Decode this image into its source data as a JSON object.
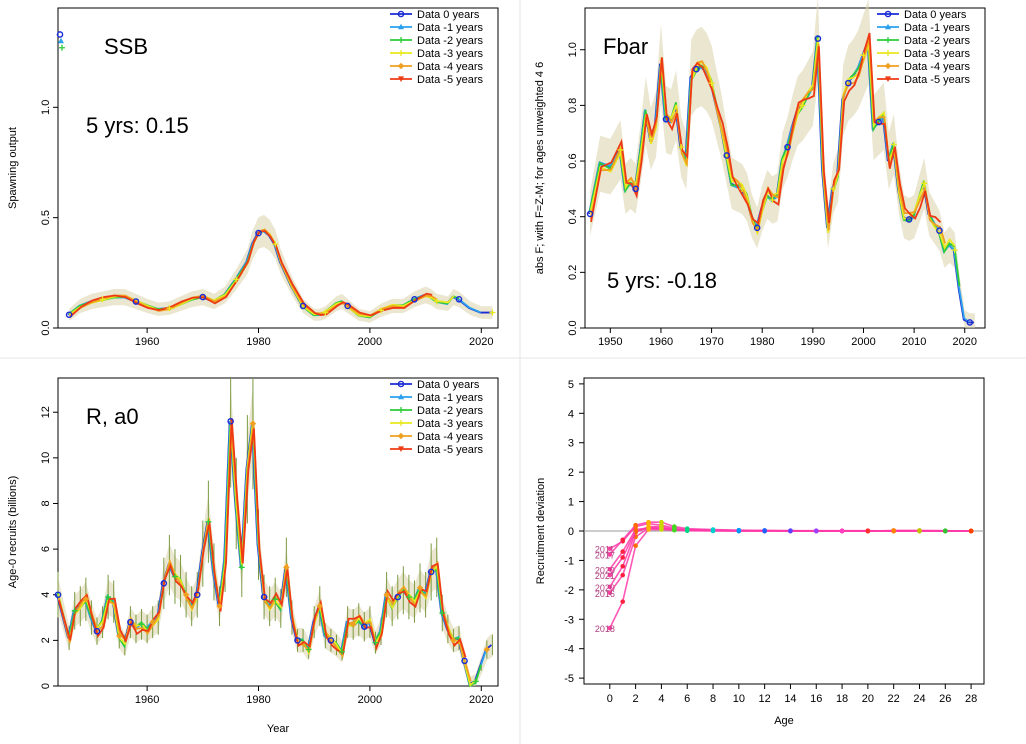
{
  "legend_labels": [
    "Data 0 years",
    "Data -1 years",
    "Data -2 years",
    "Data -3 years",
    "Data -4 years",
    "Data -5 years"
  ],
  "legend_colors": [
    "#1a2bd6",
    "#2aa0ee",
    "#2ecc3a",
    "#e8e820",
    "#f0a020",
    "#ee3a14"
  ],
  "chart_data": [
    {
      "type": "line",
      "title": "SSB",
      "annotation": "5 yrs: 0.15",
      "xlabel": "",
      "ylabel": "Spawning output",
      "xlim": [
        1944,
        2023
      ],
      "ylim": [
        0,
        1.45
      ],
      "xticks": [
        1960,
        1980,
        2000,
        2020
      ],
      "yticks": [
        "0.0",
        "0.5",
        "1.0"
      ],
      "ytick_values": [
        0,
        0.5,
        1.0
      ],
      "x": [
        1946,
        1948,
        1950,
        1952,
        1954,
        1956,
        1958,
        1960,
        1962,
        1964,
        1966,
        1968,
        1970,
        1972,
        1974,
        1976,
        1978,
        1979,
        1980,
        1981,
        1982,
        1983,
        1984,
        1986,
        1988,
        1990,
        1991,
        1992,
        1994,
        1995,
        1996,
        1998,
        2000,
        2002,
        2004,
        2006,
        2008,
        2010,
        2011,
        2012,
        2014,
        2015,
        2016,
        2018,
        2020,
        2022
      ],
      "values": [
        0.06,
        0.1,
        0.12,
        0.13,
        0.14,
        0.14,
        0.12,
        0.1,
        0.085,
        0.09,
        0.11,
        0.13,
        0.14,
        0.12,
        0.15,
        0.22,
        0.3,
        0.38,
        0.43,
        0.44,
        0.42,
        0.38,
        0.3,
        0.19,
        0.1,
        0.06,
        0.06,
        0.07,
        0.11,
        0.12,
        0.1,
        0.06,
        0.05,
        0.08,
        0.1,
        0.1,
        0.13,
        0.15,
        0.14,
        0.12,
        0.11,
        0.14,
        0.13,
        0.09,
        0.07,
        0.07
      ],
      "early_points": [
        1.33,
        1.3,
        1.27
      ],
      "grid": false,
      "legend_position": "top-right"
    },
    {
      "type": "line",
      "title": "Fbar",
      "annotation": "5 yrs: -0.18",
      "xlabel": "",
      "ylabel": "abs F; with F=Z-M; for ages unweighted 4 6",
      "xlim": [
        1945,
        2024
      ],
      "ylim": [
        0,
        1.15
      ],
      "xticks": [
        1950,
        1960,
        1970,
        1980,
        1990,
        2000,
        2010,
        2020
      ],
      "yticks": [
        "0.0",
        "0.2",
        "0.4",
        "0.6",
        "0.8",
        "1.0"
      ],
      "ytick_values": [
        0,
        0.2,
        0.4,
        0.6,
        0.8,
        1.0
      ],
      "x": [
        1946,
        1948,
        1950,
        1952,
        1953,
        1954,
        1955,
        1956,
        1957,
        1958,
        1959,
        1960,
        1961,
        1962,
        1963,
        1964,
        1965,
        1966,
        1967,
        1968,
        1969,
        1970,
        1971,
        1972,
        1973,
        1974,
        1975,
        1976,
        1977,
        1978,
        1979,
        1980,
        1981,
        1982,
        1983,
        1984,
        1985,
        1986,
        1987,
        1988,
        1989,
        1990,
        1991,
        1992,
        1993,
        1994,
        1995,
        1996,
        1997,
        1998,
        1999,
        2000,
        2001,
        2002,
        2003,
        2004,
        2005,
        2006,
        2007,
        2008,
        2009,
        2010,
        2011,
        2012,
        2013,
        2014,
        2015,
        2016,
        2017,
        2018,
        2019,
        2020,
        2021,
        2022
      ],
      "values": [
        0.41,
        0.59,
        0.58,
        0.64,
        0.5,
        0.52,
        0.5,
        0.63,
        0.78,
        0.68,
        0.73,
        0.95,
        0.75,
        0.74,
        0.8,
        0.65,
        0.6,
        0.9,
        0.93,
        0.94,
        0.92,
        0.88,
        0.8,
        0.72,
        0.62,
        0.52,
        0.51,
        0.5,
        0.47,
        0.4,
        0.36,
        0.43,
        0.48,
        0.46,
        0.47,
        0.6,
        0.65,
        0.72,
        0.78,
        0.8,
        0.83,
        0.86,
        1.04,
        0.57,
        0.36,
        0.5,
        0.55,
        0.82,
        0.88,
        0.9,
        0.93,
        0.98,
        1.03,
        0.72,
        0.74,
        0.76,
        0.6,
        0.66,
        0.5,
        0.4,
        0.39,
        0.4,
        0.46,
        0.52,
        0.41,
        0.38,
        0.35,
        0.28,
        0.3,
        0.28,
        0.14,
        0.03,
        0.02,
        0.02
      ],
      "grid": false,
      "legend_position": "top-right"
    },
    {
      "type": "line",
      "title": "R, a0",
      "xlabel": "Year",
      "ylabel": "Age-0 recruits (billions)",
      "xlim": [
        1944,
        2023
      ],
      "ylim": [
        0,
        13.5
      ],
      "xticks": [
        1960,
        1980,
        2000,
        2020
      ],
      "yticks": [
        "0",
        "2",
        "4",
        "6",
        "8",
        "10",
        "12"
      ],
      "ytick_values": [
        0,
        2,
        4,
        6,
        8,
        10,
        12
      ],
      "x": [
        1944,
        1946,
        1947,
        1948,
        1949,
        1950,
        1951,
        1952,
        1953,
        1954,
        1955,
        1956,
        1957,
        1958,
        1959,
        1960,
        1961,
        1962,
        1963,
        1964,
        1965,
        1966,
        1967,
        1968,
        1969,
        1970,
        1971,
        1972,
        1973,
        1974,
        1975,
        1976,
        1977,
        1978,
        1979,
        1980,
        1981,
        1982,
        1983,
        1984,
        1985,
        1986,
        1987,
        1988,
        1989,
        1990,
        1991,
        1992,
        1993,
        1994,
        1995,
        1996,
        1997,
        1998,
        1999,
        2000,
        2001,
        2002,
        2003,
        2004,
        2005,
        2006,
        2007,
        2008,
        2009,
        2010,
        2011,
        2012,
        2013,
        2014,
        2015,
        2016,
        2017,
        2018,
        2019,
        2020,
        2021,
        2022
      ],
      "values": [
        4.0,
        2.1,
        3.3,
        3.5,
        3.8,
        3.0,
        2.4,
        2.8,
        3.9,
        3.7,
        2.2,
        1.8,
        2.8,
        2.5,
        2.7,
        2.5,
        2.8,
        3.0,
        4.5,
        5.3,
        4.8,
        4.6,
        4.0,
        3.5,
        4.0,
        5.8,
        7.2,
        5.0,
        3.5,
        5.5,
        11.6,
        8.0,
        5.2,
        9.5,
        11.5,
        6.2,
        3.9,
        3.5,
        3.8,
        3.4,
        5.2,
        3.0,
        2.0,
        2.0,
        1.6,
        2.8,
        3.5,
        2.2,
        2.0,
        1.8,
        1.5,
        2.8,
        2.7,
        2.9,
        2.6,
        2.8,
        1.9,
        2.4,
        4.0,
        3.5,
        3.9,
        4.2,
        3.9,
        3.7,
        4.3,
        4.0,
        5.0,
        5.2,
        3.2,
        2.5,
        2.0,
        2.1,
        1.1,
        0.1,
        0.2,
        0.9,
        1.6,
        1.8
      ],
      "grid": false,
      "legend_position": "top-right"
    },
    {
      "type": "line",
      "title": "",
      "xlabel": "Age",
      "ylabel": "Recruitment deviation",
      "xlim": [
        -2,
        29
      ],
      "ylim": [
        -5.2,
        5.2
      ],
      "xticks": [
        0,
        2,
        4,
        6,
        8,
        10,
        12,
        14,
        16,
        18,
        20,
        22,
        24,
        26,
        28
      ],
      "yticks": [
        "-5",
        "-4",
        "-3",
        "-2",
        "-1",
        "0",
        "1",
        "2",
        "3",
        "4",
        "5"
      ],
      "ytick_values": [
        -5,
        -4,
        -3,
        -2,
        -1,
        0,
        1,
        2,
        3,
        4,
        5
      ],
      "ages": [
        0,
        1,
        2,
        3,
        4,
        5,
        6,
        8,
        10,
        12,
        14,
        16,
        18,
        20,
        22,
        24,
        26,
        28
      ],
      "series": [
        {
          "name": "2018",
          "values": [
            -3.3,
            -2.4,
            -0.5,
            0.05,
            0.05,
            0.03,
            0.02,
            0.01,
            0.01,
            0.01,
            0.0,
            0.0,
            0.0,
            0.0,
            0.0,
            0.0,
            0.0,
            0.0
          ]
        },
        {
          "name": "2016",
          "values": [
            -2.1,
            -1.5,
            -0.2,
            0.1,
            0.1,
            0.05,
            0.02,
            0.01,
            0.01,
            0.0,
            0.0,
            0.0,
            0.0,
            0.0,
            0.0,
            0.0,
            0.0,
            0.0
          ]
        },
        {
          "name": "2020",
          "values": [
            -1.9,
            -1.2,
            -0.05,
            0.15,
            0.15,
            0.05,
            0.02,
            0.01,
            0.0,
            0.0,
            0.0,
            0.0,
            0.0,
            0.0,
            0.0,
            0.0,
            0.0,
            0.0
          ]
        },
        {
          "name": "2021",
          "values": [
            -1.5,
            -0.9,
            0.0,
            0.1,
            0.1,
            0.04,
            0.02,
            0.01,
            0.0,
            0.0,
            0.0,
            0.0,
            0.0,
            0.0,
            0.0,
            0.0,
            0.0,
            0.0
          ]
        },
        {
          "name": "2020",
          "values": [
            -1.3,
            -0.7,
            0.05,
            0.1,
            0.08,
            0.03,
            0.01,
            0.0,
            0.0,
            0.0,
            0.0,
            0.0,
            0.0,
            0.0,
            0.0,
            0.0,
            0.0,
            0.0
          ]
        },
        {
          "name": "2011",
          "values": [
            -0.6,
            -0.35,
            0.15,
            0.25,
            0.2,
            0.1,
            0.05,
            0.03,
            0.02,
            0.01,
            0.01,
            0.0,
            0.0,
            0.0,
            0.02,
            0.02,
            0.01,
            0.0
          ]
        },
        {
          "name": "2017",
          "values": [
            -0.8,
            -0.3,
            0.2,
            0.3,
            0.3,
            0.15,
            0.08,
            0.05,
            0.03,
            0.02,
            0.01,
            0.01,
            0.01,
            0.01,
            0.0,
            0.0,
            0.0,
            0.0
          ]
        }
      ],
      "point_labels": [
        "2018",
        "2016",
        "2020",
        "2021",
        "2020",
        "2011",
        "2017"
      ],
      "grid": false
    }
  ]
}
